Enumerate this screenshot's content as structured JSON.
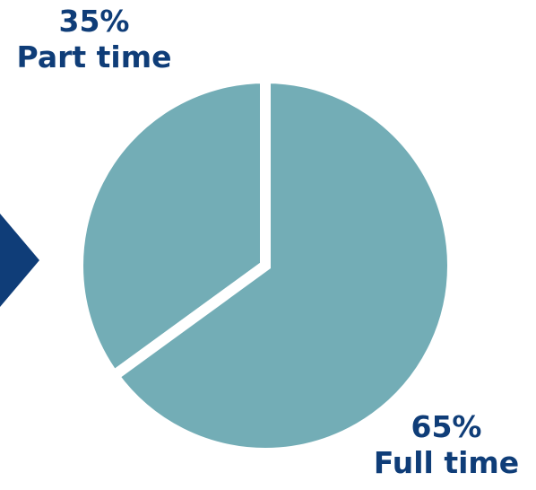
{
  "chart_data": {
    "type": "pie",
    "slices": [
      {
        "name": "Part time",
        "value": 35,
        "label": "35%"
      },
      {
        "name": "Full time",
        "value": 65,
        "label": "65%"
      }
    ],
    "slice_color": "#73adb6",
    "separator_color": "#ffffff",
    "label_color": "#0f3d78",
    "start": "12 o'clock",
    "direction": "counter-clockwise for Part time",
    "legend": "none"
  },
  "decor": {
    "arrow_icon": "chevron-right-arrow",
    "arrow_color": "#0f3d78"
  }
}
